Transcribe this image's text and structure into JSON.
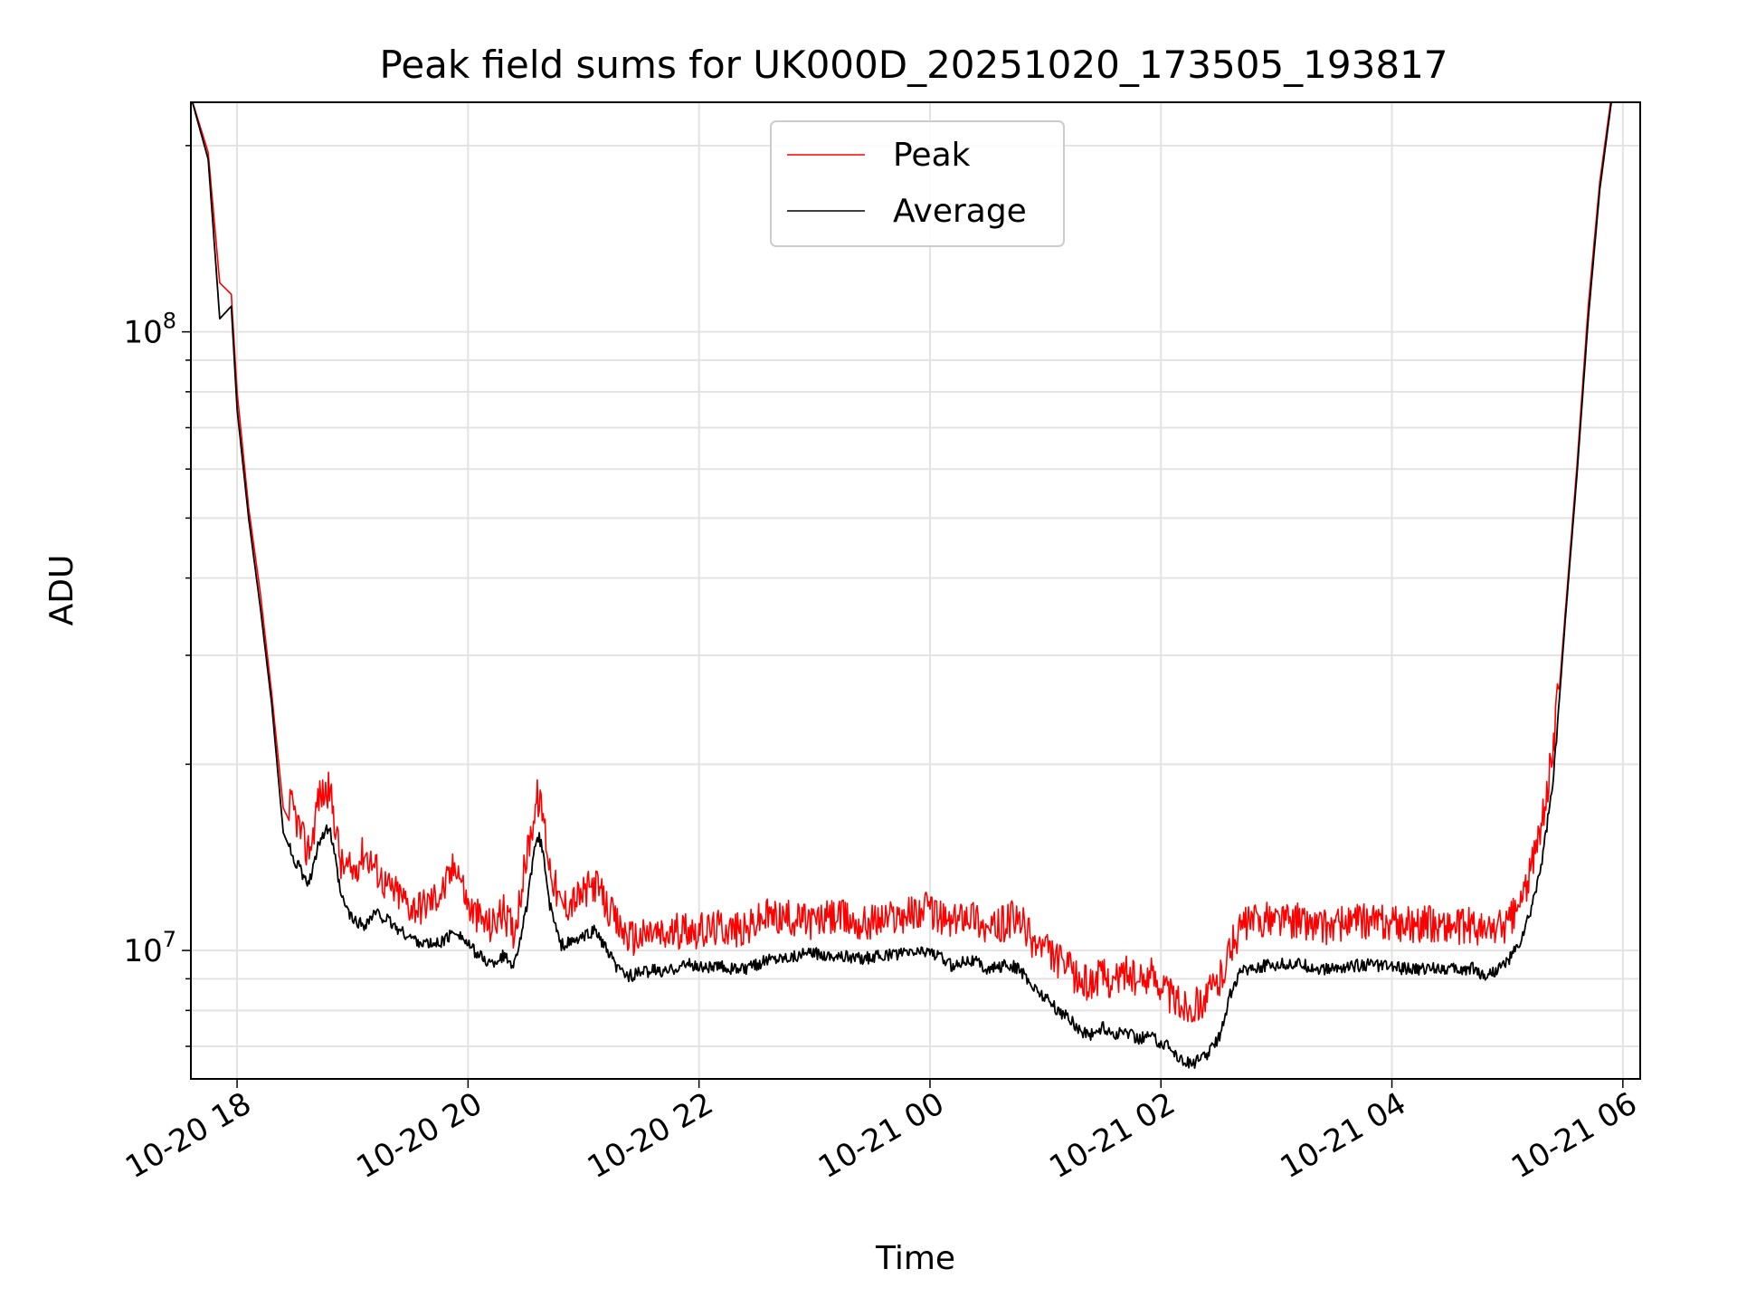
{
  "chart_data": {
    "type": "line",
    "title": "Peak field sums for UK000D_20251020_173505_193817",
    "xlabel": "Time",
    "ylabel": "ADU",
    "yscale": "log",
    "xlim": [
      17.6,
      30.15
    ],
    "ylim": [
      6200000,
      235000000
    ],
    "grid": true,
    "legend_position": "top-center",
    "x_ticks": [
      {
        "value": 18,
        "label": "10-20 18"
      },
      {
        "value": 20,
        "label": "10-20 20"
      },
      {
        "value": 22,
        "label": "10-20 22"
      },
      {
        "value": 24,
        "label": "10-21 00"
      },
      {
        "value": 26,
        "label": "10-21 02"
      },
      {
        "value": 28,
        "label": "10-21 04"
      },
      {
        "value": 30,
        "label": "10-21 06"
      }
    ],
    "y_ticks": [
      {
        "value": 10000000,
        "base": "10",
        "exp": "7"
      },
      {
        "value": 100000000,
        "base": "10",
        "exp": "8"
      }
    ],
    "x_unit": "hours since 2025-10-20 00:00",
    "series": [
      {
        "name": "Peak",
        "color": "#ff0000",
        "x": [
          17.6,
          17.75,
          17.85,
          17.95,
          18.0,
          18.1,
          18.2,
          18.3,
          18.4,
          18.5,
          18.55,
          18.6,
          18.65,
          18.7,
          18.8,
          18.85,
          18.9,
          19.0,
          19.1,
          19.2,
          19.3,
          19.4,
          19.5,
          19.6,
          19.7,
          19.8,
          19.9,
          20.0,
          20.1,
          20.2,
          20.3,
          20.4,
          20.5,
          20.6,
          20.65,
          20.7,
          20.8,
          20.9,
          21.0,
          21.1,
          21.2,
          21.3,
          21.4,
          21.5,
          21.6,
          21.7,
          21.8,
          21.9,
          22.0,
          22.2,
          22.4,
          22.5,
          22.6,
          22.8,
          23.0,
          23.2,
          23.4,
          23.6,
          23.8,
          24.0,
          24.1,
          24.2,
          24.3,
          24.4,
          24.5,
          24.6,
          24.7,
          24.8,
          24.9,
          25.0,
          25.1,
          25.2,
          25.3,
          25.4,
          25.5,
          25.6,
          25.7,
          25.8,
          25.9,
          26.0,
          26.1,
          26.2,
          26.3,
          26.4,
          26.5,
          26.6,
          26.7,
          26.8,
          27.0,
          27.2,
          27.4,
          27.6,
          27.8,
          28.0,
          28.2,
          28.4,
          28.6,
          28.7,
          28.8,
          28.9,
          29.0,
          29.1,
          29.2,
          29.3,
          29.4,
          29.5,
          29.6,
          29.7,
          29.8,
          29.9,
          29.95,
          30.05
        ],
        "y": [
          240000000,
          195000000,
          120000000,
          115000000,
          80000000,
          52000000,
          38000000,
          26000000,
          17000000,
          15500000,
          14500000,
          13500000,
          14000000,
          16500000,
          17000000,
          15000000,
          12800000,
          12500000,
          13500000,
          12700000,
          11800000,
          11500000,
          11000000,
          11000000,
          11300000,
          11800000,
          13000000,
          11000000,
          10500000,
          10200000,
          10800000,
          10000000,
          13000000,
          16500000,
          15500000,
          13000000,
          11000000,
          11200000,
          11500000,
          12000000,
          11000000,
          10200000,
          9800000,
          9800000,
          10000000,
          9800000,
          10000000,
          10200000,
          10000000,
          10200000,
          10000000,
          10400000,
          10600000,
          10500000,
          10400000,
          10600000,
          10300000,
          10500000,
          10700000,
          10900000,
          10500000,
          10300000,
          10800000,
          10600000,
          10000000,
          10200000,
          10500000,
          10300000,
          9600000,
          9400000,
          9000000,
          8700000,
          8300000,
          8300000,
          8500000,
          8300000,
          8700000,
          8200000,
          8600000,
          8300000,
          7800000,
          7600000,
          7600000,
          7900000,
          8300000,
          9400000,
          10200000,
          10400000,
          10500000,
          10400000,
          10200000,
          10300000,
          10400000,
          10300000,
          10300000,
          10300000,
          10200000,
          10300000,
          10000000,
          10200000,
          10300000,
          11000000,
          12500000,
          15000000,
          20000000,
          35000000,
          60000000,
          110000000,
          175000000,
          240000000,
          245000000,
          250000000
        ]
      },
      {
        "name": "Average",
        "color": "#000000",
        "x": [
          17.6,
          17.75,
          17.85,
          17.95,
          18.0,
          18.1,
          18.2,
          18.3,
          18.4,
          18.5,
          18.55,
          18.6,
          18.65,
          18.7,
          18.8,
          18.85,
          18.9,
          19.0,
          19.1,
          19.2,
          19.3,
          19.4,
          19.5,
          19.6,
          19.7,
          19.8,
          19.9,
          20.0,
          20.1,
          20.2,
          20.3,
          20.4,
          20.5,
          20.6,
          20.65,
          20.7,
          20.8,
          20.9,
          21.0,
          21.1,
          21.2,
          21.3,
          21.4,
          21.5,
          21.6,
          21.7,
          21.8,
          21.9,
          22.0,
          22.2,
          22.4,
          22.5,
          22.6,
          22.8,
          23.0,
          23.2,
          23.4,
          23.6,
          23.8,
          24.0,
          24.1,
          24.2,
          24.3,
          24.4,
          24.5,
          24.6,
          24.7,
          24.8,
          24.9,
          25.0,
          25.1,
          25.2,
          25.3,
          25.4,
          25.5,
          25.6,
          25.7,
          25.8,
          25.9,
          26.0,
          26.1,
          26.2,
          26.3,
          26.4,
          26.5,
          26.6,
          26.7,
          26.8,
          27.0,
          27.2,
          27.4,
          27.6,
          27.8,
          28.0,
          28.2,
          28.4,
          28.6,
          28.7,
          28.8,
          28.9,
          29.0,
          29.1,
          29.2,
          29.3,
          29.4,
          29.5,
          29.6,
          29.7,
          29.8,
          29.9,
          29.95,
          30.05
        ],
        "y": [
          240000000,
          190000000,
          105000000,
          110000000,
          75000000,
          50000000,
          36000000,
          25000000,
          15500000,
          14000000,
          13500000,
          12800000,
          13200000,
          15000000,
          15800000,
          14000000,
          12200000,
          11200000,
          11000000,
          11500000,
          11200000,
          10800000,
          10500000,
          10300000,
          10200000,
          10400000,
          10800000,
          10200000,
          9800000,
          9500000,
          9800000,
          9500000,
          11500000,
          15500000,
          14500000,
          12000000,
          10200000,
          10300000,
          10500000,
          10800000,
          10000000,
          9300000,
          9100000,
          9200000,
          9300000,
          9200000,
          9400000,
          9500000,
          9400000,
          9400000,
          9300000,
          9500000,
          9700000,
          9800000,
          9900000,
          9800000,
          9700000,
          9800000,
          9900000,
          10000000,
          9700000,
          9400000,
          9700000,
          9600000,
          9300000,
          9400000,
          9500000,
          9200000,
          8700000,
          8400000,
          8000000,
          7800000,
          7400000,
          7300000,
          7500000,
          7300000,
          7400000,
          7200000,
          7300000,
          7100000,
          6900000,
          6600000,
          6600000,
          6800000,
          7200000,
          8500000,
          9300000,
          9400000,
          9500000,
          9500000,
          9300000,
          9400000,
          9500000,
          9400000,
          9300000,
          9400000,
          9300000,
          9400000,
          9100000,
          9300000,
          9600000,
          10200000,
          11500000,
          14000000,
          19000000,
          34000000,
          58000000,
          105000000,
          170000000,
          235000000,
          240000000,
          245000000
        ]
      }
    ]
  }
}
